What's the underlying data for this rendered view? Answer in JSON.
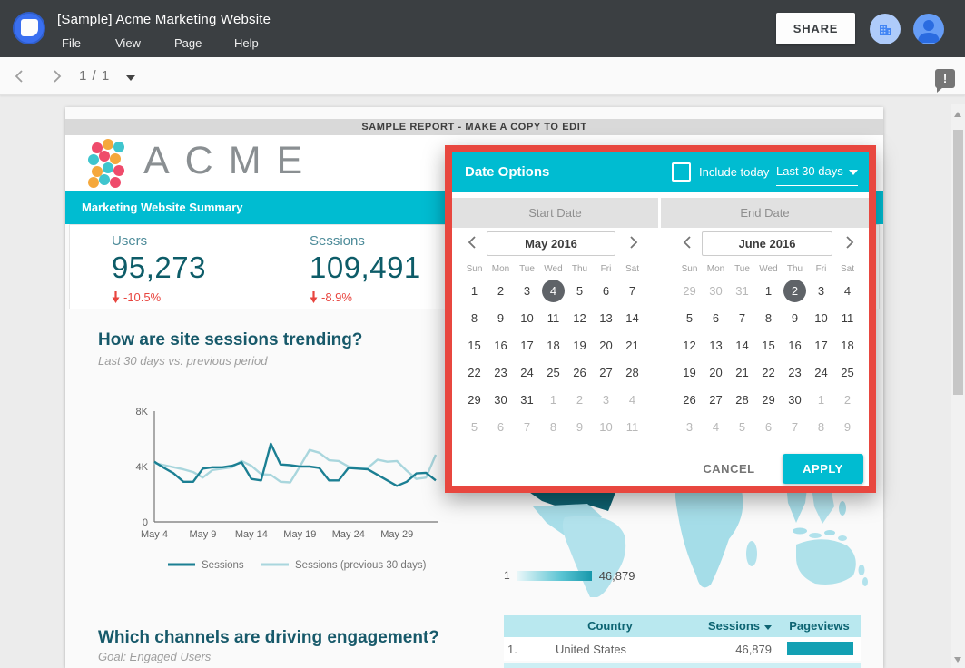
{
  "topbar": {
    "title": "[Sample] Acme Marketing Website",
    "menus": [
      "File",
      "View",
      "Page",
      "Help"
    ],
    "share": "SHARE"
  },
  "navbar": {
    "pages": "1 / 1"
  },
  "banner": "SAMPLE REPORT - MAKE A COPY TO EDIT",
  "brand": {
    "wordmark": "ACME"
  },
  "section_bar": "Marketing Website Summary",
  "scorecards": [
    {
      "label": "Users",
      "value": "95,273",
      "delta": "-10.5%"
    },
    {
      "label": "Sessions",
      "value": "109,491",
      "delta": "-8.9%"
    }
  ],
  "trending": {
    "title": "How are site sessions trending?",
    "subtitle": "Last 30 days vs. previous period"
  },
  "channels": {
    "title": "Which channels are driving engagement?",
    "subtitle": "Goal: Engaged Users"
  },
  "chart_data": {
    "type": "line",
    "title": "How are site sessions trending?",
    "x_ticks": [
      "May 4",
      "May 9",
      "May 14",
      "May 19",
      "May 24",
      "May 29"
    ],
    "y_ticks": [
      "0",
      "4K",
      "8K"
    ],
    "ylim": [
      0,
      8000
    ],
    "grid": false,
    "legend_position": "bottom",
    "series": [
      {
        "name": "Sessions",
        "color": "#1b7f93",
        "values": [
          4350,
          3900,
          3500,
          2900,
          2900,
          3850,
          3950,
          3950,
          4050,
          4300,
          3100,
          3000,
          5650,
          4150,
          4100,
          4000,
          4000,
          3900,
          3000,
          3000,
          3900,
          3850,
          3800,
          3400,
          3000,
          2600,
          2900,
          3500,
          3550,
          3000
        ]
      },
      {
        "name": "Sessions (previous 30 days)",
        "color": "#a9d6dd",
        "values": [
          4250,
          4100,
          3950,
          3800,
          3600,
          3200,
          3750,
          3850,
          3950,
          4400,
          4050,
          3450,
          3400,
          2900,
          2850,
          4000,
          5200,
          5000,
          4450,
          4400,
          4000,
          3900,
          3900,
          4500,
          4350,
          4400,
          3700,
          3100,
          3200,
          4850
        ]
      }
    ]
  },
  "map": {
    "legend_min": "1",
    "legend_max": "46,879"
  },
  "table": {
    "headers": {
      "country": "Country",
      "sessions": "Sessions",
      "pageviews": "Pageviews"
    },
    "rows": [
      {
        "rank": "1.",
        "country": "United States",
        "sessions": "46,879",
        "bar_pct": 100
      }
    ]
  },
  "dialog": {
    "title": "Date Options",
    "include_today": "Include today",
    "range": "Last 30 days",
    "tabs": [
      "Start Date",
      "End Date"
    ],
    "weekdays": [
      "Sun",
      "Mon",
      "Tue",
      "Wed",
      "Thu",
      "Fri",
      "Sat"
    ],
    "calendars": [
      {
        "month": "May 2016",
        "weeks": [
          [
            "1",
            "2",
            "3",
            "4s",
            "5",
            "6",
            "7"
          ],
          [
            "8",
            "9",
            "10",
            "11",
            "12",
            "13",
            "14"
          ],
          [
            "15",
            "16",
            "17",
            "18",
            "19",
            "20",
            "21"
          ],
          [
            "22",
            "23",
            "24",
            "25",
            "26",
            "27",
            "28"
          ],
          [
            "29",
            "30",
            "31",
            "1m",
            "2m",
            "3m",
            "4m"
          ],
          [
            "5m",
            "6m",
            "7m",
            "8m",
            "9m",
            "10m",
            "11m"
          ]
        ]
      },
      {
        "month": "June 2016",
        "weeks": [
          [
            "29m",
            "30m",
            "31m",
            "1",
            "2s",
            "3",
            "4"
          ],
          [
            "5",
            "6",
            "7",
            "8",
            "9",
            "10",
            "11"
          ],
          [
            "12",
            "13",
            "14",
            "15",
            "16",
            "17",
            "18"
          ],
          [
            "19",
            "20",
            "21",
            "22",
            "23",
            "24",
            "25"
          ],
          [
            "26",
            "27",
            "28",
            "29",
            "30",
            "1m",
            "2m"
          ],
          [
            "3m",
            "4m",
            "5m",
            "6m",
            "7m",
            "8m",
            "9m"
          ]
        ]
      }
    ],
    "cancel": "CANCEL",
    "apply": "APPLY"
  },
  "colors": {
    "accent": "#00bcd1",
    "dark_teal": "#0d5c68",
    "negative": "#e8453f",
    "highlight_border": "#e8473f",
    "selected_day": "#5f6368",
    "map_max": "#0d6170"
  }
}
